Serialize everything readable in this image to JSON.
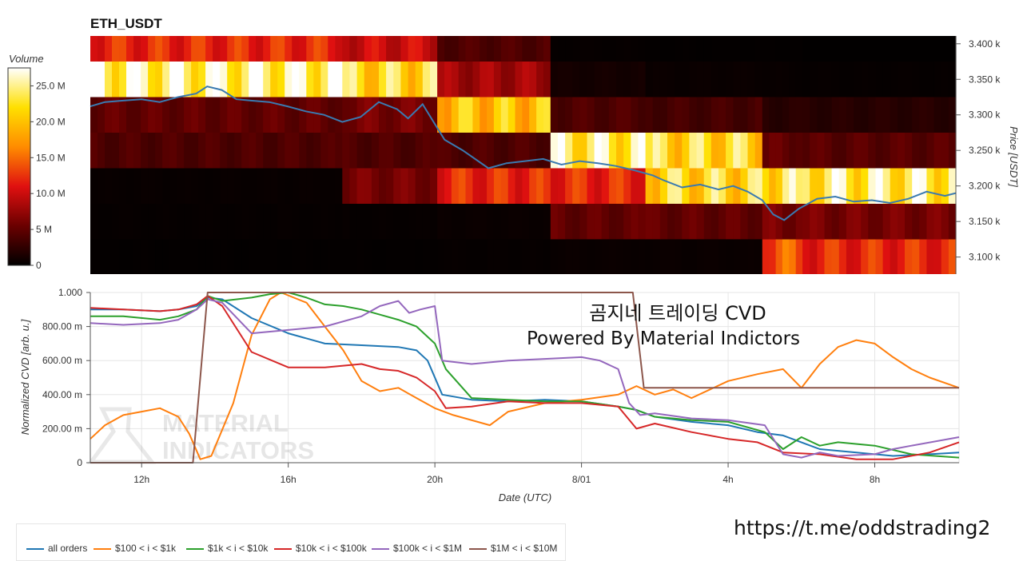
{
  "watermark": {
    "line1": "MATERIAL",
    "line2": "INDICATORS"
  },
  "footer_link": "https://t.me/oddstrading2",
  "overlay_text": {
    "line1": "곰지네 트레이딩 CVD",
    "line2": "Powered By Material Indictors"
  },
  "colors": {
    "all_orders": "#1f77b4",
    "s100_1k": "#ff7f0e",
    "s1k_10k": "#2ca02c",
    "s10k_100k": "#d62728",
    "s100k_1M": "#9467bd",
    "s1M_10M": "#8c564b"
  },
  "chart_data": [
    {
      "type": "heatmap",
      "title": "ETH_USDT",
      "ylabel": "Price [USDT]",
      "yticks": [
        3100,
        3150,
        3200,
        3250,
        3300,
        3350,
        3400
      ],
      "ytick_labels": [
        "3.100 k",
        "3.150 k",
        "3.200 k",
        "3.250 k",
        "3.300 k",
        "3.350 k",
        "3.400 k"
      ],
      "ylim": [
        3076,
        3411
      ],
      "colorbar": {
        "label": "Volume",
        "range": [
          0,
          27500000
        ],
        "ticks": [
          0,
          5000000,
          10000000,
          15000000,
          20000000,
          25000000
        ],
        "tick_labels": [
          "0",
          "5 M",
          "10.0 M",
          "15.0 M",
          "20.0 M",
          "25.0 M"
        ]
      },
      "price_bands": [
        3100,
        3150,
        3200,
        3250,
        3300,
        3350,
        3400
      ],
      "time_segments_hours": [
        10.6,
        17.5,
        20.1,
        23.2,
        25.8,
        29.0,
        30.1,
        34.3
      ],
      "volume_matrix_note": "rows = price bands (low to high), columns = time segments",
      "volume_matrix": [
        [
          0.2,
          0.2,
          0.3,
          0.5,
          0.5,
          14.0,
          12.0,
          12.0
        ],
        [
          0.3,
          0.3,
          0.5,
          5.0,
          5.0,
          6.0,
          6.0,
          6.0
        ],
        [
          0.4,
          6.0,
          12.0,
          12.0,
          22.0,
          23.0,
          24.0,
          23.0
        ],
        [
          4.0,
          4.0,
          4.0,
          24.0,
          22.0,
          5.0,
          4.5,
          4.5
        ],
        [
          5.0,
          6.0,
          20.0,
          4.0,
          3.5,
          2.0,
          2.0,
          1.5
        ],
        [
          25.0,
          22.0,
          8.0,
          1.0,
          0.5,
          0.4,
          0.3,
          0.3
        ],
        [
          12.0,
          10.0,
          4.0,
          0.3,
          0.2,
          0.2,
          0.1,
          0.1
        ]
      ],
      "price_line": {
        "x_hours": [
          10.6,
          11.0,
          11.5,
          12.0,
          12.5,
          13.0,
          13.5,
          13.8,
          14.2,
          14.6,
          15.0,
          15.5,
          16.0,
          16.5,
          17.0,
          17.5,
          18.0,
          18.5,
          19.0,
          19.3,
          19.7,
          20.0,
          20.3,
          20.8,
          21.5,
          22.0,
          22.5,
          23.0,
          23.5,
          24.0,
          24.5,
          25.0,
          25.5,
          26.0,
          26.3,
          26.8,
          27.3,
          27.8,
          28.2,
          28.6,
          29.0,
          29.3,
          29.6,
          30.0,
          30.5,
          31.0,
          31.5,
          32.0,
          32.5,
          33.0,
          33.5,
          34.0,
          34.3
        ],
        "y": [
          3312,
          3318,
          3320,
          3322,
          3318,
          3325,
          3330,
          3340,
          3335,
          3322,
          3320,
          3318,
          3312,
          3305,
          3300,
          3290,
          3297,
          3318,
          3308,
          3295,
          3315,
          3290,
          3265,
          3250,
          3225,
          3232,
          3235,
          3238,
          3230,
          3235,
          3232,
          3228,
          3222,
          3215,
          3208,
          3198,
          3202,
          3195,
          3200,
          3192,
          3180,
          3160,
          3152,
          3168,
          3182,
          3185,
          3178,
          3180,
          3176,
          3182,
          3192,
          3186,
          3190
        ]
      }
    },
    {
      "type": "line",
      "xlabel": "Date (UTC)",
      "ylabel": "Normalized CVD [arb. u.]",
      "ylim": [
        0,
        1
      ],
      "yticks": [
        0,
        0.2,
        0.4,
        0.6,
        0.8,
        1.0
      ],
      "ytick_labels": [
        "0",
        "200.00 m",
        "400.00 m",
        "600.00 m",
        "800.00 m",
        "1.000"
      ],
      "xlim": [
        10.6,
        34.3
      ],
      "xticks": [
        12,
        16,
        20,
        24,
        28,
        32
      ],
      "xtick_labels": [
        "12h",
        "16h",
        "20h",
        "8/01",
        "4h",
        "8h"
      ],
      "series": [
        {
          "name": "all orders",
          "key": "all_orders",
          "x": [
            10.6,
            11.5,
            12.5,
            13.0,
            13.5,
            13.8,
            14.2,
            15.0,
            16.0,
            17.0,
            18.0,
            19.0,
            19.5,
            19.8,
            20.2,
            21.0,
            22.0,
            23.0,
            24.0,
            25.0,
            25.5,
            26.0,
            27.0,
            28.0,
            28.8,
            29.5,
            30.5,
            31.5,
            32.5,
            33.5,
            34.3
          ],
          "y": [
            0.9,
            0.9,
            0.89,
            0.9,
            0.92,
            0.97,
            0.96,
            0.85,
            0.76,
            0.7,
            0.69,
            0.68,
            0.66,
            0.6,
            0.4,
            0.37,
            0.36,
            0.37,
            0.36,
            0.33,
            0.31,
            0.27,
            0.24,
            0.22,
            0.18,
            0.16,
            0.08,
            0.06,
            0.04,
            0.05,
            0.06
          ]
        },
        {
          "name": "$100 < i < $1k",
          "key": "s100_1k",
          "x": [
            10.6,
            11.0,
            11.5,
            12.0,
            12.5,
            13.0,
            13.3,
            13.6,
            13.9,
            14.5,
            15.0,
            15.5,
            15.8,
            16.5,
            17.0,
            17.5,
            18.0,
            18.5,
            19.0,
            19.5,
            20.0,
            20.5,
            21.5,
            22.0,
            23.0,
            24.0,
            25.0,
            25.5,
            26.0,
            26.5,
            27.0,
            28.0,
            28.8,
            29.5,
            30.0,
            30.5,
            31.0,
            31.5,
            32.0,
            32.5,
            33.0,
            33.5,
            34.3
          ],
          "y": [
            0.14,
            0.22,
            0.28,
            0.3,
            0.32,
            0.27,
            0.17,
            0.02,
            0.04,
            0.35,
            0.75,
            0.96,
            1.0,
            0.94,
            0.8,
            0.66,
            0.48,
            0.42,
            0.44,
            0.38,
            0.32,
            0.28,
            0.22,
            0.3,
            0.35,
            0.37,
            0.4,
            0.45,
            0.4,
            0.43,
            0.38,
            0.48,
            0.52,
            0.55,
            0.44,
            0.58,
            0.68,
            0.72,
            0.7,
            0.62,
            0.55,
            0.5,
            0.44
          ]
        },
        {
          "name": "$1k < i < $10k",
          "key": "s1k_10k",
          "x": [
            10.6,
            11.5,
            12.5,
            13.0,
            13.5,
            13.8,
            14.2,
            15.0,
            15.5,
            16.0,
            16.5,
            17.0,
            17.5,
            18.0,
            18.5,
            19.0,
            19.5,
            20.0,
            20.3,
            21.0,
            22.0,
            23.0,
            24.0,
            25.0,
            25.5,
            26.0,
            27.0,
            28.0,
            29.0,
            29.5,
            30.0,
            30.5,
            31.0,
            32.0,
            33.0,
            34.3
          ],
          "y": [
            0.86,
            0.86,
            0.84,
            0.86,
            0.9,
            0.98,
            0.95,
            0.97,
            0.99,
            1.0,
            0.97,
            0.93,
            0.92,
            0.9,
            0.87,
            0.84,
            0.8,
            0.7,
            0.55,
            0.38,
            0.37,
            0.36,
            0.36,
            0.33,
            0.31,
            0.27,
            0.25,
            0.24,
            0.18,
            0.08,
            0.15,
            0.1,
            0.12,
            0.1,
            0.05,
            0.03
          ]
        },
        {
          "name": "$10k < i < $100k",
          "key": "s10k_100k",
          "x": [
            10.6,
            11.5,
            12.5,
            13.0,
            13.5,
            13.8,
            14.2,
            15.0,
            16.0,
            17.0,
            18.0,
            18.5,
            19.0,
            19.5,
            20.0,
            20.3,
            21.0,
            22.0,
            23.0,
            24.0,
            25.0,
            25.5,
            26.0,
            27.0,
            28.0,
            28.8,
            29.5,
            30.5,
            31.5,
            32.5,
            33.5,
            34.3
          ],
          "y": [
            0.91,
            0.9,
            0.89,
            0.9,
            0.93,
            0.98,
            0.92,
            0.65,
            0.56,
            0.56,
            0.58,
            0.55,
            0.54,
            0.5,
            0.42,
            0.32,
            0.33,
            0.36,
            0.35,
            0.35,
            0.33,
            0.2,
            0.23,
            0.18,
            0.14,
            0.12,
            0.06,
            0.05,
            0.02,
            0.02,
            0.06,
            0.12
          ]
        },
        {
          "name": "$100k < i < $1M",
          "key": "s100k_1M",
          "x": [
            10.6,
            11.5,
            12.5,
            13.0,
            13.5,
            13.8,
            14.2,
            15.0,
            16.0,
            17.0,
            18.0,
            18.5,
            19.0,
            19.3,
            19.6,
            20.0,
            20.2,
            21.0,
            22.0,
            23.0,
            24.0,
            24.5,
            25.0,
            25.3,
            25.6,
            26.0,
            27.0,
            28.0,
            29.0,
            29.5,
            30.0,
            30.5,
            31.0,
            32.0,
            32.5,
            33.0,
            34.3
          ],
          "y": [
            0.82,
            0.81,
            0.82,
            0.84,
            0.9,
            0.96,
            0.94,
            0.76,
            0.78,
            0.8,
            0.86,
            0.92,
            0.95,
            0.88,
            0.9,
            0.92,
            0.6,
            0.58,
            0.6,
            0.61,
            0.62,
            0.6,
            0.55,
            0.35,
            0.28,
            0.29,
            0.26,
            0.25,
            0.22,
            0.05,
            0.03,
            0.06,
            0.04,
            0.05,
            0.08,
            0.1,
            0.15
          ]
        },
        {
          "name": "$1M < i < $10M",
          "key": "s1M_10M",
          "x": [
            10.6,
            13.4,
            13.8,
            25.4,
            25.7,
            34.3
          ],
          "y": [
            0.0,
            0.0,
            1.0,
            1.0,
            0.44,
            0.44
          ]
        }
      ]
    }
  ]
}
